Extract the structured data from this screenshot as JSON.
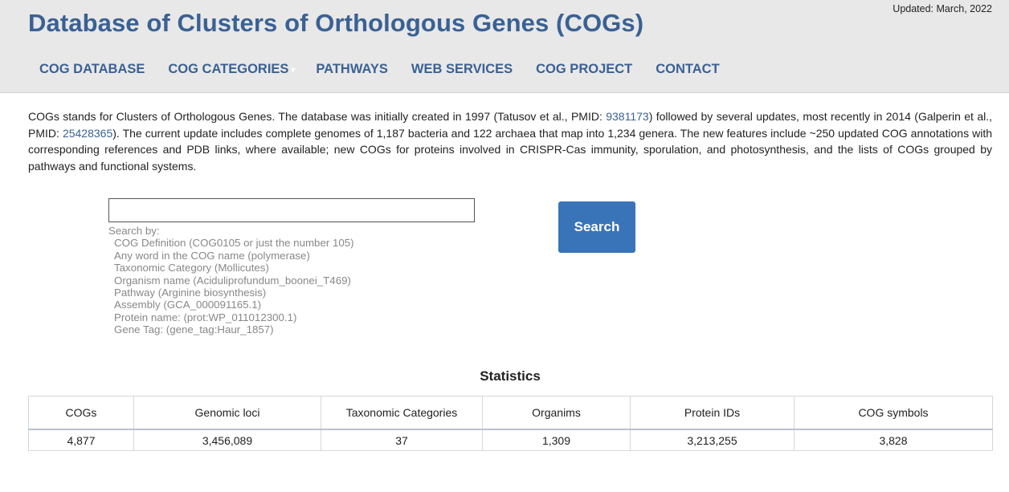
{
  "header": {
    "updated": "Updated: March, 2022",
    "title": "Database of Clusters of Orthologous Genes (COGs)"
  },
  "nav": {
    "items": [
      {
        "label": "COG DATABASE"
      },
      {
        "label": "COG CATEGORIES",
        "has_dropdown": true
      },
      {
        "label": "PATHWAYS"
      },
      {
        "label": "WEB SERVICES"
      },
      {
        "label": "COG PROJECT"
      },
      {
        "label": "CONTACT"
      }
    ]
  },
  "intro": {
    "text1": "COGs stands for Clusters of Orthologous Genes. The database was initially created in 1997 (Tatusov et al., PMID: ",
    "pmid1": "9381173",
    "text2": ") followed by several updates, most recently in 2014 (Galperin et al., PMID: ",
    "pmid2": "25428365",
    "text3": "). The current update includes complete genomes of 1,187 bacteria and 122 archaea that map into 1,234 genera. The new features include ~250 updated COG annotations with corresponding references and PDB links, where available; new COGs for proteins involved in CRISPR-Cas immunity, sporulation, and photosynthesis, and the lists of COGs grouped by pathways and functional systems."
  },
  "search": {
    "value": "",
    "button_label": "Search",
    "help_title": "Search by:",
    "options": [
      "COG Definition (COG0105 or just the number 105)",
      "Any word in the COG name (polymerase)",
      "Taxonomic Category (Mollicutes)",
      "Organism name (Aciduliprofundum_boonei_T469)",
      "Pathway (Arginine biosynthesis)",
      "Assembly (GCA_000091165.1)",
      "Protein name: (prot:WP_011012300.1)",
      "Gene Tag: (gene_tag:Haur_1857)"
    ]
  },
  "stats": {
    "title": "Statistics",
    "headers": [
      "COGs",
      "Genomic loci",
      "Taxonomic Categories",
      "Organims",
      "Protein IDs",
      "COG symbols"
    ],
    "values": [
      "4,877",
      "3,456,089",
      "37",
      "1,309",
      "3,213,255",
      "3,828"
    ]
  },
  "colors": {
    "brand": "#3a6193",
    "button": "#3a74b8",
    "header_bg": "#e8e8e8"
  },
  "icons": {
    "nav_dropdown": "chevron-down-icon"
  }
}
